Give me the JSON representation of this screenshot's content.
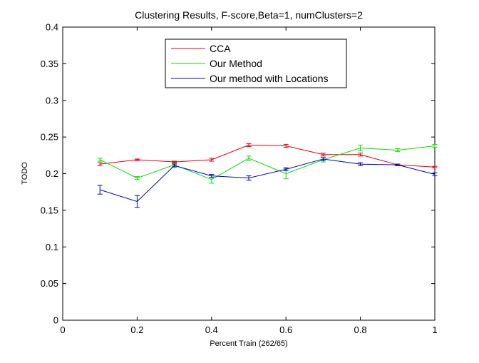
{
  "chart_data": {
    "type": "line",
    "title": "Clustering Results, F-score,Beta=1, numClusters=2",
    "xlabel": "Percent Train (262/65)",
    "ylabel": "TODO",
    "xlim": [
      0,
      1
    ],
    "ylim": [
      0,
      0.4
    ],
    "xticks": [
      "0",
      "0.2",
      "0.4",
      "0.6",
      "0.8",
      "1"
    ],
    "yticks": [
      "0",
      "0.05",
      "0.1",
      "0.15",
      "0.2",
      "0.25",
      "0.3",
      "0.35",
      "0.4"
    ],
    "grid": false,
    "legend_position": "top-center",
    "x": [
      0.1,
      0.2,
      0.3,
      0.4,
      0.5,
      0.6,
      0.7,
      0.8,
      0.9,
      1.0
    ],
    "series": [
      {
        "name": "CCA",
        "color": "#e8000b",
        "values": [
          0.213,
          0.219,
          0.216,
          0.219,
          0.239,
          0.238,
          0.226,
          0.226,
          0.212,
          0.209
        ],
        "errors": [
          0.002,
          0.001,
          0.001,
          0.002,
          0.002,
          0.002,
          0.002,
          0.002,
          0.001,
          0.001
        ]
      },
      {
        "name": "Our Method",
        "color": "#00e000",
        "values": [
          0.219,
          0.194,
          0.212,
          0.192,
          0.221,
          0.2,
          0.219,
          0.235,
          0.232,
          0.238
        ],
        "errors": [
          0.002,
          0.002,
          0.002,
          0.005,
          0.003,
          0.007,
          0.003,
          0.004,
          0.002,
          0.002
        ]
      },
      {
        "name": "Our method with Locations",
        "color": "#0000c8",
        "values": [
          0.178,
          0.162,
          0.211,
          0.197,
          0.194,
          0.206,
          0.22,
          0.213,
          0.212,
          0.199
        ],
        "errors": [
          0.006,
          0.008,
          0.002,
          0.002,
          0.003,
          0.002,
          0.002,
          0.002,
          0.001,
          0.002
        ]
      }
    ]
  }
}
